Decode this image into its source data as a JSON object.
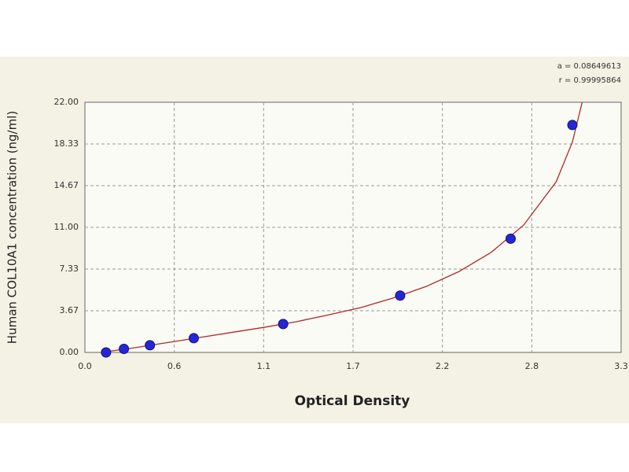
{
  "chart_data": {
    "type": "scatter",
    "x_label": "Optical Density",
    "y_label": "Human COL10A1 concentration (ng/ml)",
    "annotations": [
      "a = 0.08649613",
      "r = 0.99995864"
    ],
    "xlim": [
      0,
      3.3
    ],
    "ylim": [
      0,
      22
    ],
    "xticks": [
      {
        "value": 0,
        "label": "0.0"
      },
      {
        "value": 0.55,
        "label": "0.6"
      },
      1.1,
      {
        "value": 1.65,
        "label": "1.7"
      },
      2.2,
      {
        "value": 2.75,
        "label": "2.8"
      },
      3.3
    ],
    "yticks": [
      {
        "value": 0,
        "label": "0.00"
      },
      {
        "value": 3.6667,
        "label": "3.67"
      },
      {
        "value": 7.3333,
        "label": "7.33"
      },
      {
        "value": 11,
        "label": "11.00"
      },
      {
        "value": 14.6667,
        "label": "14.67"
      },
      {
        "value": 18.3333,
        "label": "18.33"
      },
      {
        "value": 22,
        "label": "22.00"
      }
    ],
    "grid": true,
    "series": [
      {
        "type": "line",
        "color": "#b02828",
        "x": [
          0.1,
          0.3,
          0.5,
          0.7,
          0.9,
          1.1,
          1.3,
          1.5,
          1.7,
          1.9,
          2.1,
          2.3,
          2.5,
          2.7,
          2.9,
          3.0,
          3.06
        ],
        "values": [
          0.0,
          0.4,
          0.85,
          1.3,
          1.75,
          2.2,
          2.7,
          3.3,
          3.95,
          4.8,
          5.8,
          7.1,
          8.8,
          11.2,
          15.0,
          18.5,
          22.0
        ]
      },
      {
        "type": "scatter",
        "color": "#2626d6",
        "x": [
          0.13,
          0.24,
          0.4,
          0.67,
          1.22,
          1.94,
          2.62,
          3.0
        ],
        "values": [
          0,
          0.31,
          0.63,
          1.25,
          2.5,
          5,
          10,
          20
        ]
      }
    ]
  }
}
